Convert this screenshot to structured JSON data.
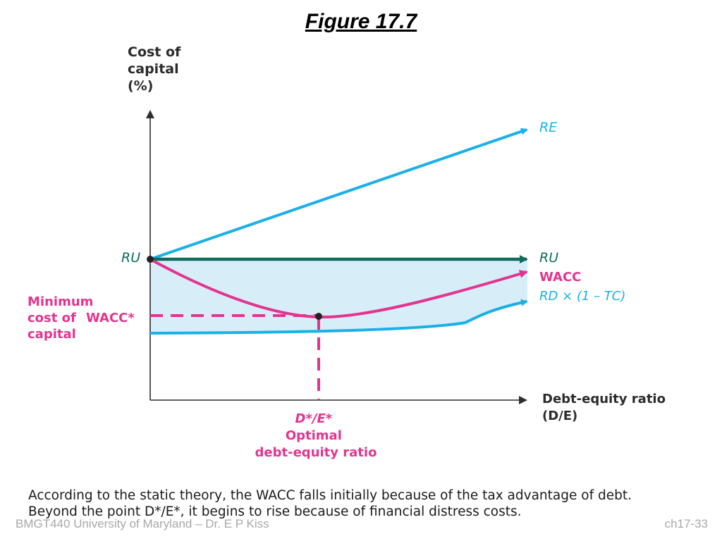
{
  "slide": {
    "title": "Figure 17.7"
  },
  "colors": {
    "equity_line": "#1ab0e8",
    "unlevered_line": "#0f6b5c",
    "wacc_line": "#e3348f",
    "debt_line": "#1ab0e8",
    "shaded_region": "#d7eef9",
    "axis": "#2e2e2e"
  },
  "diagram": {
    "y_axis_label": [
      "Cost of",
      "capital",
      "(%)"
    ],
    "x_axis_label": [
      "Debt-equity ratio",
      "(D/E)"
    ],
    "y_intercept_label": "RU",
    "line_labels": {
      "equity": "RE",
      "unlevered": "RU",
      "wacc": "WACC",
      "debt_after_tax": "RD × (1 – TC)"
    },
    "minimum_cost_label": [
      "Minimum",
      "cost of",
      "capital"
    ],
    "minimum_wacc_marker": "WACC*",
    "optimal_point_label": [
      "D*/E*",
      "Optimal",
      "debt-equity ratio"
    ]
  },
  "caption": {
    "line1": "According to the static theory, the WACC falls initially because of the tax advantage of debt.",
    "line2": "Beyond the point  D*/E*, it begins to rise because of financial distress costs."
  },
  "footer": {
    "left": "BMGT440 University of Maryland – Dr. E P Kiss",
    "right": "ch17-33"
  }
}
